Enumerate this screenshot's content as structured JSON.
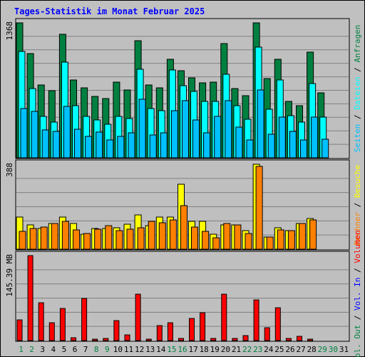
{
  "title": "Tages-Statistik im Monat Februar 2025",
  "colors": {
    "background": "#c0c0c0",
    "panel": "#bfbfbf",
    "grid": "#808080",
    "title": "#0000ff",
    "hits": "#008040",
    "files": "#00ffff",
    "pages": "#00c0ff",
    "visits": "#ffff00",
    "sites": "#ff8000",
    "kbytes_out": "#008040",
    "kbytes_in": "#0000ff",
    "volume": "#ff0000",
    "weekday_label": "#000000",
    "weekend_label": "#008040"
  },
  "chart_data": [
    {
      "type": "bar",
      "panel": "top",
      "ymax_label": "1368",
      "ylim": [
        0,
        1368
      ],
      "grid": true,
      "right_labels": [
        {
          "text": "Anfragen",
          "color": "#008040"
        },
        {
          "text": " / ",
          "color": "#000000"
        },
        {
          "text": "Dateien",
          "color": "#00ffff"
        },
        {
          "text": " / ",
          "color": "#000000"
        },
        {
          "text": "Seiten",
          "color": "#00c0ff"
        }
      ],
      "series": [
        {
          "name": "Anfragen",
          "color": "#008040",
          "values": [
            1368,
            1060,
            740,
            680,
            1250,
            790,
            710,
            620,
            600,
            770,
            690,
            1190,
            740,
            710,
            1000,
            880,
            810,
            760,
            770,
            1160,
            700,
            630,
            1368,
            800,
            1000,
            570,
            530,
            1070,
            660,
            0,
            0
          ]
        },
        {
          "name": "Dateien",
          "color": "#00ffff",
          "values": [
            1080,
            700,
            420,
            360,
            970,
            530,
            420,
            380,
            340,
            420,
            400,
            900,
            500,
            480,
            890,
            730,
            670,
            570,
            570,
            850,
            530,
            390,
            1120,
            490,
            790,
            430,
            360,
            750,
            410,
            0,
            0
          ]
        },
        {
          "name": "Seiten",
          "color": "#00c0ff",
          "values": [
            500,
            470,
            280,
            270,
            520,
            290,
            220,
            260,
            180,
            220,
            250,
            590,
            230,
            250,
            480,
            580,
            380,
            250,
            420,
            580,
            310,
            180,
            690,
            240,
            410,
            270,
            180,
            410,
            190,
            0,
            0
          ]
        }
      ]
    },
    {
      "type": "bar",
      "panel": "middle",
      "ymax_label": "388",
      "ylim": [
        0,
        388
      ],
      "grid": true,
      "right_labels": [
        {
          "text": "Besuche",
          "color": "#ffff00"
        },
        {
          "text": " / ",
          "color": "#000000"
        },
        {
          "text": "Rechner",
          "color": "#ff8000"
        }
      ],
      "series": [
        {
          "name": "Besuche",
          "color": "#ffff00",
          "values": [
            148,
            112,
            94,
            118,
            148,
            118,
            68,
            96,
            96,
            98,
            115,
            158,
            106,
            148,
            148,
            297,
            128,
            128,
            68,
            112,
            112,
            86,
            388,
            56,
            98,
            86,
            118,
            140,
            0,
            0,
            0
          ]
        },
        {
          "name": "Rechner",
          "color": "#ff8000",
          "values": [
            82,
            94,
            102,
            118,
            128,
            88,
            72,
            92,
            108,
            86,
            92,
            98,
            128,
            122,
            135,
            200,
            102,
            82,
            52,
            118,
            112,
            72,
            378,
            56,
            88,
            86,
            118,
            134,
            0,
            0,
            0
          ]
        }
      ]
    },
    {
      "type": "bar",
      "panel": "bottom",
      "ymax_label": "145.39 MB",
      "ylim": [
        0,
        145.39
      ],
      "grid": true,
      "right_labels": [
        {
          "text": "Volumen",
          "color": "#ff0000"
        },
        {
          "text": " / ",
          "color": "#000000"
        },
        {
          "text": "Vol. In",
          "color": "#0000ff"
        },
        {
          "text": " / ",
          "color": "#000000"
        },
        {
          "text": "Vol. Out",
          "color": "#008040"
        }
      ],
      "series": [
        {
          "name": "Volumen",
          "color": "#ff0000",
          "values": [
            35,
            145.39,
            65,
            30,
            55,
            5,
            72,
            3,
            4,
            34,
            10,
            80,
            3,
            26,
            30,
            4,
            38,
            48,
            4,
            80,
            4,
            8,
            70,
            22,
            56,
            4,
            7,
            3,
            0,
            0,
            0
          ]
        }
      ]
    }
  ],
  "x_labels": [
    {
      "text": "1",
      "weekend": true
    },
    {
      "text": "2",
      "weekend": true
    },
    {
      "text": "3",
      "weekend": false
    },
    {
      "text": "4",
      "weekend": false
    },
    {
      "text": "5",
      "weekend": false
    },
    {
      "text": "6",
      "weekend": false
    },
    {
      "text": "7",
      "weekend": false
    },
    {
      "text": "8",
      "weekend": true
    },
    {
      "text": "9",
      "weekend": true
    },
    {
      "text": "10",
      "weekend": false
    },
    {
      "text": "11",
      "weekend": false
    },
    {
      "text": "12",
      "weekend": false
    },
    {
      "text": "13",
      "weekend": false
    },
    {
      "text": "14",
      "weekend": false
    },
    {
      "text": "15",
      "weekend": true
    },
    {
      "text": "16",
      "weekend": true
    },
    {
      "text": "17",
      "weekend": false
    },
    {
      "text": "18",
      "weekend": false
    },
    {
      "text": "19",
      "weekend": false
    },
    {
      "text": "20",
      "weekend": false
    },
    {
      "text": "21",
      "weekend": false
    },
    {
      "text": "22",
      "weekend": true
    },
    {
      "text": "23",
      "weekend": true
    },
    {
      "text": "24",
      "weekend": false
    },
    {
      "text": "25",
      "weekend": false
    },
    {
      "text": "26",
      "weekend": false
    },
    {
      "text": "27",
      "weekend": false
    },
    {
      "text": "28",
      "weekend": false
    },
    {
      "text": "29",
      "weekend": true
    },
    {
      "text": "30",
      "weekend": true
    },
    {
      "text": "31",
      "weekend": false
    }
  ]
}
